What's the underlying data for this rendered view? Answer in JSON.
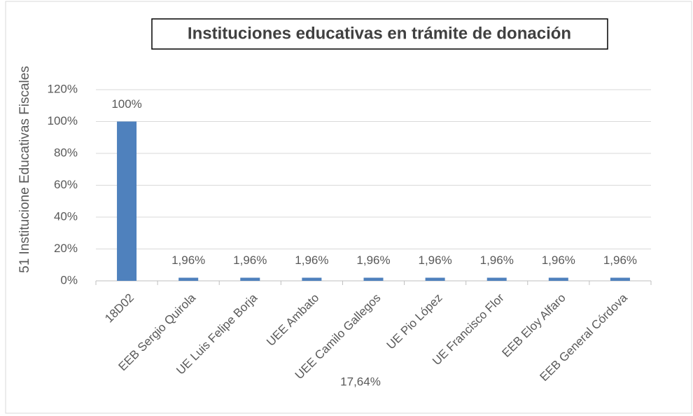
{
  "chart_data": {
    "type": "bar",
    "title": "Instituciones educativas en trámite de donación",
    "y_label": "51 Institucione Educativas Fiscales",
    "annotation": "17,64%",
    "categories": [
      "18D02",
      "EEB Sergio Quirola",
      "UE Luis Felipe Borja",
      "UEE Ambato",
      "UEE Camilo Gallegos",
      "UE Pio López",
      "UE Francisco Flor",
      "EEB Eloy Alfaro",
      "EEB General Córdova"
    ],
    "values": [
      100,
      1.96,
      1.96,
      1.96,
      1.96,
      1.96,
      1.96,
      1.96,
      1.96
    ],
    "value_labels": [
      "100%",
      "1,96%",
      "1,96%",
      "1,96%",
      "1,96%",
      "1,96%",
      "1,96%",
      "1,96%",
      "1,96%"
    ],
    "color": "#4f81bd",
    "ylim": [
      0,
      120
    ],
    "yticks": [
      {
        "value": 0,
        "label": "0%"
      },
      {
        "value": 20,
        "label": "20%"
      },
      {
        "value": 40,
        "label": "40%"
      },
      {
        "value": 60,
        "label": "60%"
      },
      {
        "value": 80,
        "label": "80%"
      },
      {
        "value": 100,
        "label": "100%"
      },
      {
        "value": 120,
        "label": "120%"
      }
    ],
    "grid": true
  }
}
